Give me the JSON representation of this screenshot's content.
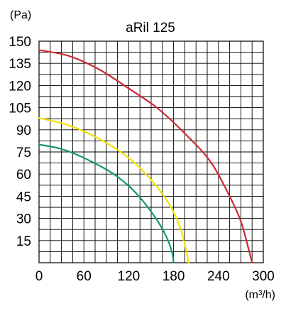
{
  "chart_data": {
    "type": "line",
    "title": "aRil 125",
    "ylabel": "(Pa)",
    "xlabel": "(m³/h)",
    "xlim": [
      0,
      300
    ],
    "ylim": [
      0,
      150
    ],
    "x_ticks": [
      0,
      60,
      120,
      180,
      240,
      300
    ],
    "y_ticks": [
      15,
      30,
      45,
      60,
      75,
      90,
      105,
      120,
      135,
      150
    ],
    "grid": true,
    "grid_x_step": 15,
    "grid_y_step": 7.5,
    "legend": "none",
    "series": [
      {
        "color": "#cc2a36",
        "x": [
          0,
          40,
          80,
          120,
          160,
          200,
          230,
          255,
          270,
          280,
          285
        ],
        "y": [
          144,
          140,
          131,
          118,
          104,
          85,
          68,
          45,
          28,
          10,
          0
        ]
      },
      {
        "color": "#f2e200",
        "x": [
          0,
          40,
          80,
          120,
          150,
          175,
          190,
          197,
          200
        ],
        "y": [
          98,
          93,
          84,
          71,
          56,
          39,
          22,
          8,
          0
        ]
      },
      {
        "color": "#129a6a",
        "x": [
          0,
          30,
          60,
          100,
          130,
          155,
          170,
          178,
          180
        ],
        "y": [
          80,
          77,
          71,
          60,
          47,
          31,
          18,
          7,
          0
        ]
      }
    ]
  }
}
